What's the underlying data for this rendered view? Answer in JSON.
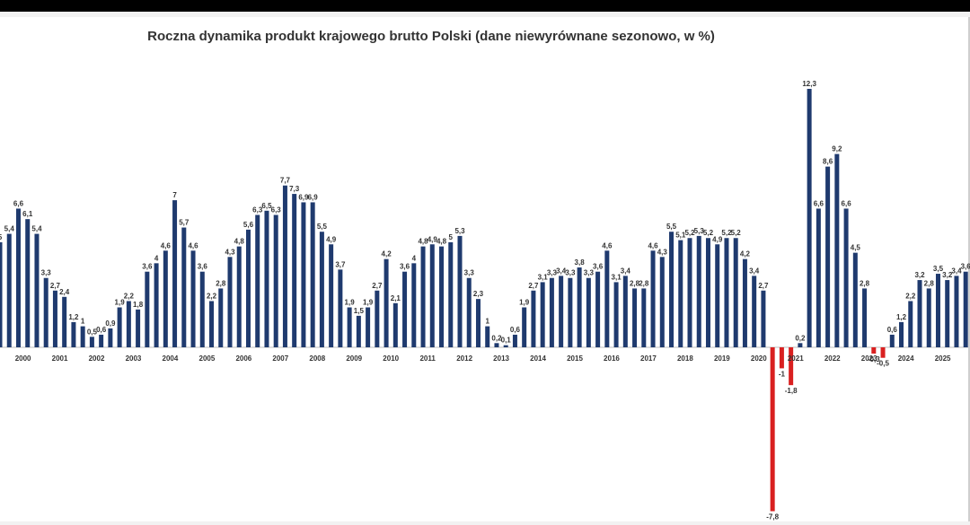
{
  "chart_data": {
    "type": "bar",
    "title": "Roczna dynamika produkt krajowego brutto Polski (dane niewyrównane sezonowo, w %)",
    "xlabel": "",
    "ylabel": "",
    "ylim": [
      -7.8,
      12.3
    ],
    "grid": false,
    "legend": "none",
    "colors": {
      "positive": "#1f3a6e",
      "negative": "#d92020"
    },
    "year_ticks": [
      "2000",
      "2001",
      "2002",
      "2003",
      "2004",
      "2005",
      "2006",
      "2007",
      "2008",
      "2009",
      "2010",
      "2011",
      "2012",
      "2013",
      "2014",
      "2015",
      "2016",
      "2017",
      "2018",
      "2019",
      "2020",
      "2021",
      "2022",
      "2023",
      "2024",
      "2025"
    ],
    "values": [
      5,
      5.4,
      6.6,
      6.1,
      5.4,
      3.3,
      2.7,
      2.4,
      1.2,
      1,
      0.5,
      0.6,
      0.9,
      1.9,
      2.2,
      1.8,
      3.6,
      4,
      4.6,
      7,
      5.7,
      4.6,
      3.6,
      2.2,
      2.8,
      4.3,
      4.8,
      5.6,
      6.3,
      6.5,
      6.3,
      7.7,
      7.3,
      6.9,
      6.9,
      5.5,
      4.9,
      3.7,
      1.9,
      1.5,
      1.9,
      2.7,
      4.2,
      2.1,
      3.6,
      4,
      4.8,
      4.9,
      4.8,
      5,
      5.3,
      3.3,
      2.3,
      1,
      0.2,
      0.1,
      0.6,
      1.9,
      2.7,
      3.1,
      3.3,
      3.4,
      3.3,
      3.8,
      3.3,
      3.6,
      4.6,
      3.1,
      3.4,
      2.8,
      2.8,
      4.6,
      4.3,
      5.5,
      5.1,
      5.2,
      5.3,
      5.2,
      4.9,
      5.2,
      5.2,
      4.2,
      3.4,
      2.7,
      -7.8,
      -1,
      -1.8,
      0.2,
      12.3,
      6.6,
      8.6,
      9.2,
      6.6,
      4.5,
      2.8,
      -0.3,
      -0.5,
      0.6,
      1.2,
      2.2,
      3.2,
      2.8,
      3.5,
      3.2,
      3.4,
      3.6
    ],
    "labels": [
      "5",
      "5,4",
      "6,6",
      "6,1",
      "5,4",
      "3,3",
      "2,7",
      "2,4",
      "1,2",
      "1",
      "0,5",
      "0,6",
      "0,9",
      "1,9",
      "2,2",
      "1,8",
      "3,6",
      "4",
      "4,6",
      "7",
      "5,7",
      "4,6",
      "3,6",
      "2,2",
      "2,8",
      "4,3",
      "4,8",
      "5,6",
      "6,3",
      "6,5",
      "6,3",
      "7,7",
      "7,3",
      "6,9",
      "6,9",
      "5,5",
      "4,9",
      "3,7",
      "1,9",
      "1,5",
      "1,9",
      "2,7",
      "4,2",
      "2,1",
      "3,6",
      "4",
      "4,8",
      "4,9",
      "4,8",
      "5",
      "5,3",
      "3,3",
      "2,3",
      "1",
      "0,2",
      "0,1",
      "0,6",
      "1,9",
      "2,7",
      "3,1",
      "3,3",
      "3,4",
      "3,3",
      "3,8",
      "3,3",
      "3,6",
      "4,6",
      "3,1",
      "3,4",
      "2,8",
      "2,8",
      "4,6",
      "4,3",
      "5,5",
      "5,1",
      "5,2",
      "5,3",
      "5,2",
      "4,9",
      "5,2",
      "5,2",
      "4,2",
      "3,4",
      "2,7",
      "-7,8",
      "-1",
      "-1,8",
      "0,2",
      "12,3",
      "6,6",
      "8,6",
      "9,2",
      "6,6",
      "4,5",
      "2,8",
      "-0,3",
      "-0,5",
      "0,6",
      "1,2",
      "2,2",
      "3,2",
      "2,8",
      "3,5",
      "3,2",
      "3,4",
      "3,6"
    ]
  }
}
